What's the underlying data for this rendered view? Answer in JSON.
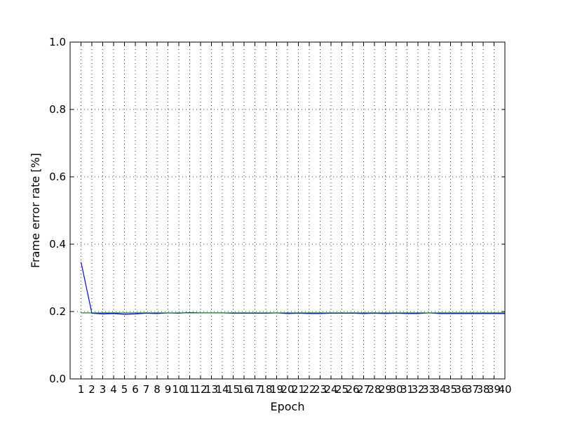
{
  "chart_data": {
    "type": "line",
    "title": "",
    "xlabel": "Epoch",
    "ylabel": "Frame error rate [%]",
    "xlim": [
      0,
      40
    ],
    "ylim": [
      0.0,
      1.0
    ],
    "x": [
      1,
      2,
      3,
      4,
      5,
      6,
      7,
      8,
      9,
      10,
      11,
      12,
      13,
      14,
      15,
      16,
      17,
      18,
      19,
      20,
      21,
      22,
      23,
      24,
      25,
      26,
      27,
      28,
      29,
      30,
      31,
      32,
      33,
      34,
      35,
      36,
      37,
      38,
      39,
      40
    ],
    "x_tick_labels": [
      "1",
      "2",
      "3",
      "4",
      "5",
      "6",
      "7",
      "8",
      "9",
      "10",
      "11",
      "12",
      "13",
      "14",
      "15",
      "16",
      "17",
      "18",
      "19",
      "20",
      "21",
      "22",
      "23",
      "24",
      "25",
      "26",
      "27",
      "28",
      "29",
      "30",
      "31",
      "32",
      "33",
      "34",
      "35",
      "36",
      "37",
      "38",
      "39",
      "40"
    ],
    "y_ticks": [
      0.0,
      0.2,
      0.4,
      0.6,
      0.8,
      1.0
    ],
    "y_tick_labels": [
      "0.0",
      "0.2",
      "0.4",
      "0.6",
      "0.8",
      "1.0"
    ],
    "grid": true,
    "series": [
      {
        "color": "#0000ff",
        "values": [
          0.347,
          0.195,
          0.193,
          0.194,
          0.192,
          0.193,
          0.195,
          0.194,
          0.196,
          0.195,
          0.197,
          0.196,
          0.196,
          0.196,
          0.195,
          0.195,
          0.195,
          0.195,
          0.196,
          0.194,
          0.195,
          0.194,
          0.194,
          0.195,
          0.195,
          0.195,
          0.194,
          0.195,
          0.194,
          0.195,
          0.194,
          0.194,
          0.196,
          0.194,
          0.194,
          0.194,
          0.194,
          0.194,
          0.194,
          0.194
        ]
      },
      {
        "color": "#008000",
        "values": [
          0.196,
          0.196,
          0.196,
          0.196,
          0.196,
          0.196,
          0.196,
          0.196,
          0.196,
          0.196,
          0.196,
          0.196,
          0.196,
          0.196,
          0.196,
          0.196,
          0.196,
          0.196,
          0.196,
          0.196,
          0.196,
          0.196,
          0.196,
          0.196,
          0.196,
          0.196,
          0.196,
          0.196,
          0.196,
          0.196,
          0.196,
          0.196,
          0.196,
          0.196,
          0.196,
          0.196,
          0.196,
          0.196,
          0.196,
          0.196
        ]
      }
    ]
  }
}
